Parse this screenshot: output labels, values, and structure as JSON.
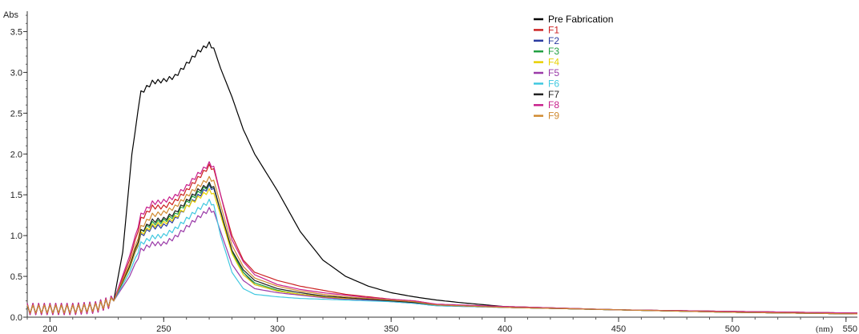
{
  "chart_data": {
    "type": "line",
    "title": "",
    "xlabel": "(nm)",
    "ylabel": "Abs",
    "xlim": [
      190,
      555
    ],
    "ylim": [
      0,
      3.75
    ],
    "grid": false,
    "legend_position": "top-right",
    "x_ticks": [
      {
        "value": 200,
        "label": "200"
      },
      {
        "value": 250,
        "label": "250"
      },
      {
        "value": 300,
        "label": "300"
      },
      {
        "value": 350,
        "label": "350"
      },
      {
        "value": 400,
        "label": "400"
      },
      {
        "value": 450,
        "label": "450"
      },
      {
        "value": 500,
        "label": "500"
      },
      {
        "value": 550,
        "label": "550"
      }
    ],
    "y_ticks": [
      {
        "value": 0.0,
        "label": "0.0"
      },
      {
        "value": 0.5,
        "label": "0.5"
      },
      {
        "value": 1.0,
        "label": "1.0"
      },
      {
        "value": 1.5,
        "label": "1.5"
      },
      {
        "value": 2.0,
        "label": "2.0"
      },
      {
        "value": 2.5,
        "label": "2.5"
      },
      {
        "value": 3.0,
        "label": "3.0"
      },
      {
        "value": 3.5,
        "label": "3.5"
      }
    ],
    "series": [
      {
        "name": "Pre Fabrication",
        "color": "#000000",
        "x": [
          190,
          200,
          210,
          220,
          228,
          232,
          236,
          240,
          245,
          250,
          255,
          260,
          265,
          270,
          272,
          275,
          280,
          285,
          290,
          300,
          310,
          320,
          330,
          340,
          350,
          360,
          370,
          380,
          400,
          450,
          500,
          555
        ],
        "y": [
          0.1,
          0.1,
          0.1,
          0.12,
          0.2,
          0.8,
          2.0,
          2.75,
          2.88,
          2.9,
          2.95,
          3.1,
          3.25,
          3.35,
          3.3,
          3.05,
          2.7,
          2.3,
          2.0,
          1.55,
          1.05,
          0.7,
          0.5,
          0.38,
          0.3,
          0.25,
          0.21,
          0.18,
          0.13,
          0.09,
          0.07,
          0.05
        ]
      },
      {
        "name": "F1",
        "color": "#cc2222",
        "x": [
          190,
          200,
          210,
          220,
          228,
          235,
          240,
          245,
          250,
          255,
          260,
          265,
          270,
          272,
          275,
          280,
          285,
          290,
          300,
          310,
          320,
          330,
          340,
          350,
          360,
          365,
          370,
          400,
          450,
          500,
          555
        ],
        "y": [
          0.1,
          0.1,
          0.1,
          0.12,
          0.2,
          0.7,
          1.2,
          1.35,
          1.35,
          1.42,
          1.55,
          1.7,
          1.85,
          1.82,
          1.5,
          1.0,
          0.7,
          0.55,
          0.45,
          0.38,
          0.33,
          0.28,
          0.25,
          0.22,
          0.2,
          0.18,
          0.15,
          0.13,
          0.09,
          0.07,
          0.05
        ]
      },
      {
        "name": "F2",
        "color": "#2a3ba0",
        "x": [
          190,
          200,
          210,
          220,
          228,
          235,
          240,
          245,
          250,
          255,
          260,
          265,
          270,
          272,
          275,
          280,
          285,
          290,
          300,
          310,
          320,
          330,
          340,
          350,
          360,
          370,
          400,
          450,
          500,
          555
        ],
        "y": [
          0.1,
          0.1,
          0.1,
          0.12,
          0.2,
          0.6,
          1.0,
          1.1,
          1.12,
          1.2,
          1.35,
          1.48,
          1.6,
          1.58,
          1.3,
          0.8,
          0.55,
          0.4,
          0.32,
          0.28,
          0.25,
          0.23,
          0.22,
          0.2,
          0.18,
          0.15,
          0.12,
          0.09,
          0.06,
          0.04
        ]
      },
      {
        "name": "F3",
        "color": "#22a042",
        "x": [
          190,
          200,
          210,
          220,
          228,
          235,
          240,
          245,
          250,
          255,
          260,
          265,
          270,
          272,
          275,
          280,
          285,
          290,
          300,
          310,
          320,
          330,
          340,
          350,
          360,
          370,
          400,
          450,
          500,
          555
        ],
        "y": [
          0.1,
          0.1,
          0.1,
          0.12,
          0.2,
          0.6,
          1.05,
          1.15,
          1.18,
          1.25,
          1.4,
          1.52,
          1.62,
          1.6,
          1.3,
          0.8,
          0.55,
          0.42,
          0.33,
          0.28,
          0.25,
          0.23,
          0.22,
          0.2,
          0.18,
          0.15,
          0.12,
          0.09,
          0.06,
          0.04
        ]
      },
      {
        "name": "F4",
        "color": "#e8d000",
        "x": [
          190,
          200,
          210,
          220,
          228,
          235,
          240,
          245,
          250,
          255,
          260,
          265,
          270,
          272,
          275,
          280,
          285,
          290,
          300,
          310,
          320,
          330,
          340,
          350,
          360,
          370,
          400,
          450,
          500,
          555
        ],
        "y": [
          0.1,
          0.1,
          0.1,
          0.12,
          0.2,
          0.6,
          1.02,
          1.12,
          1.15,
          1.22,
          1.35,
          1.46,
          1.55,
          1.52,
          1.25,
          0.78,
          0.52,
          0.4,
          0.32,
          0.28,
          0.25,
          0.23,
          0.22,
          0.2,
          0.18,
          0.15,
          0.12,
          0.09,
          0.06,
          0.04
        ]
      },
      {
        "name": "F5",
        "color": "#9a3aa8",
        "x": [
          190,
          200,
          210,
          220,
          228,
          235,
          240,
          245,
          250,
          255,
          260,
          265,
          270,
          272,
          275,
          280,
          285,
          290,
          300,
          310,
          320,
          330,
          340,
          350,
          360,
          370,
          400,
          450,
          500,
          555
        ],
        "y": [
          0.1,
          0.1,
          0.1,
          0.12,
          0.2,
          0.5,
          0.82,
          0.9,
          0.9,
          0.98,
          1.1,
          1.22,
          1.32,
          1.3,
          1.05,
          0.65,
          0.45,
          0.35,
          0.3,
          0.27,
          0.24,
          0.22,
          0.21,
          0.19,
          0.17,
          0.14,
          0.12,
          0.09,
          0.06,
          0.04
        ]
      },
      {
        "name": "F6",
        "color": "#40c8e0",
        "x": [
          190,
          200,
          210,
          220,
          228,
          235,
          240,
          245,
          250,
          255,
          260,
          265,
          270,
          272,
          275,
          280,
          285,
          290,
          300,
          310,
          320,
          330,
          340,
          350,
          360,
          370,
          400,
          450,
          500,
          555
        ],
        "y": [
          0.1,
          0.1,
          0.1,
          0.12,
          0.2,
          0.55,
          0.9,
          0.98,
          1.0,
          1.08,
          1.2,
          1.32,
          1.42,
          1.38,
          1.0,
          0.55,
          0.35,
          0.28,
          0.25,
          0.23,
          0.22,
          0.21,
          0.2,
          0.19,
          0.17,
          0.14,
          0.12,
          0.09,
          0.06,
          0.04
        ]
      },
      {
        "name": "F7",
        "color": "#222222",
        "x": [
          190,
          200,
          210,
          220,
          228,
          235,
          240,
          245,
          250,
          255,
          260,
          265,
          270,
          272,
          275,
          280,
          285,
          290,
          300,
          310,
          320,
          330,
          340,
          350,
          360,
          370,
          400,
          450,
          500,
          555
        ],
        "y": [
          0.1,
          0.1,
          0.1,
          0.12,
          0.2,
          0.62,
          1.05,
          1.18,
          1.2,
          1.28,
          1.42,
          1.55,
          1.63,
          1.6,
          1.3,
          0.82,
          0.58,
          0.45,
          0.35,
          0.3,
          0.26,
          0.24,
          0.22,
          0.2,
          0.18,
          0.15,
          0.12,
          0.09,
          0.06,
          0.04
        ]
      },
      {
        "name": "F8",
        "color": "#c8208c",
        "x": [
          190,
          200,
          210,
          220,
          228,
          235,
          240,
          245,
          250,
          255,
          260,
          265,
          270,
          272,
          275,
          280,
          285,
          290,
          300,
          310,
          320,
          330,
          340,
          350,
          360,
          370,
          400,
          450,
          500,
          555
        ],
        "y": [
          0.1,
          0.1,
          0.1,
          0.12,
          0.2,
          0.75,
          1.25,
          1.4,
          1.42,
          1.48,
          1.6,
          1.75,
          1.88,
          1.85,
          1.5,
          0.95,
          0.68,
          0.52,
          0.4,
          0.34,
          0.3,
          0.27,
          0.24,
          0.22,
          0.2,
          0.16,
          0.13,
          0.09,
          0.07,
          0.05
        ]
      },
      {
        "name": "F9",
        "color": "#d08a30",
        "x": [
          190,
          200,
          210,
          220,
          228,
          235,
          240,
          245,
          250,
          255,
          260,
          265,
          270,
          272,
          275,
          280,
          285,
          290,
          300,
          310,
          320,
          330,
          340,
          350,
          360,
          370,
          400,
          450,
          500,
          555
        ],
        "y": [
          0.1,
          0.1,
          0.1,
          0.12,
          0.2,
          0.65,
          1.1,
          1.25,
          1.28,
          1.35,
          1.48,
          1.6,
          1.7,
          1.68,
          1.38,
          0.88,
          0.62,
          0.48,
          0.38,
          0.32,
          0.28,
          0.25,
          0.23,
          0.21,
          0.19,
          0.15,
          0.12,
          0.09,
          0.06,
          0.04
        ]
      }
    ]
  }
}
